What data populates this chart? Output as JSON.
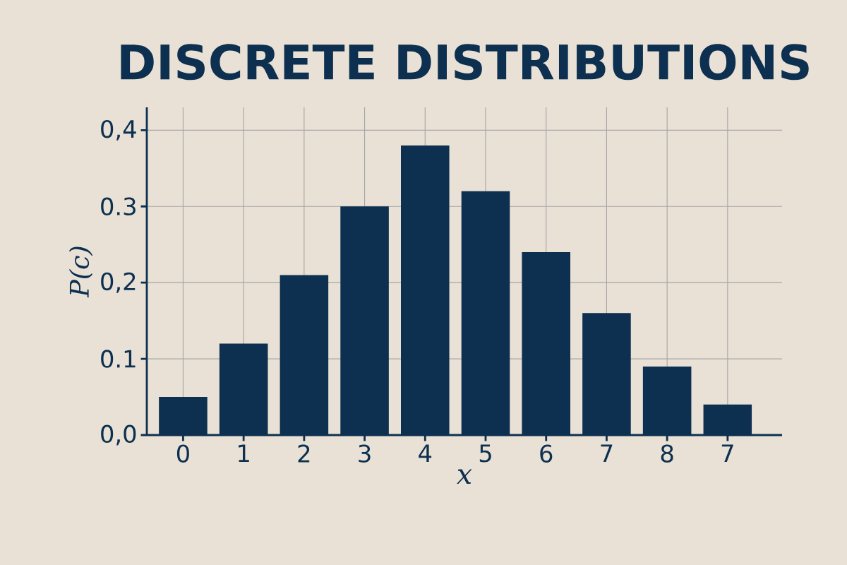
{
  "chart_data": {
    "type": "bar",
    "title": "DISCRETE DISTRIBUTIONS",
    "xlabel": "x",
    "ylabel": "P(c)",
    "categories": [
      "0",
      "1",
      "2",
      "3",
      "4",
      "5",
      "6",
      "7",
      "8",
      "7"
    ],
    "values": [
      0.05,
      0.12,
      0.21,
      0.3,
      0.38,
      0.32,
      0.24,
      0.16,
      0.09,
      0.04
    ],
    "color": "#0d3050",
    "ylim": [
      0,
      0.43
    ],
    "yticks": [
      {
        "value": 0,
        "label": "0,0"
      },
      0.1,
      {
        "value": 0.2,
        "label": "0,2"
      },
      0.3,
      {
        "value": 0.4,
        "label": "0,4"
      }
    ],
    "grid": true
  }
}
